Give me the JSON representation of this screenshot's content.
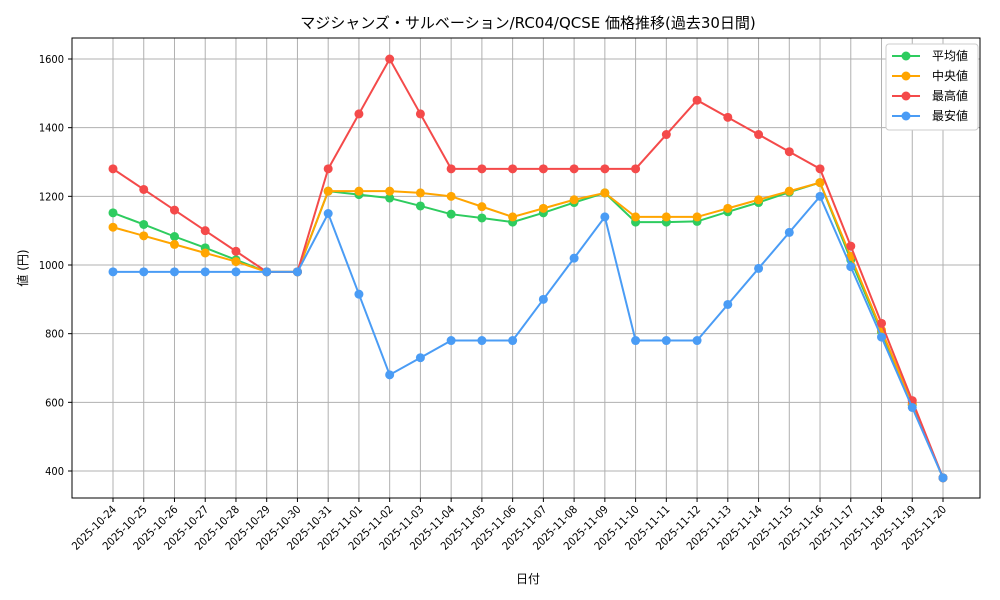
{
  "chart_data": {
    "type": "line",
    "title": "マジシャンズ・サルベーション/RC04/QCSE 価格推移(過去30日間)",
    "xlabel": "日付",
    "ylabel": "値 (円)",
    "ylim": [
      330,
      1660
    ],
    "yticks": [
      400,
      600,
      800,
      1000,
      1200,
      1400,
      1600
    ],
    "grid": true,
    "legend_position": "upper right",
    "categories": [
      "2025-10-24",
      "2025-10-25",
      "2025-10-26",
      "2025-10-27",
      "2025-10-28",
      "2025-10-29",
      "2025-10-30",
      "2025-10-31",
      "2025-11-01",
      "2025-11-02",
      "2025-11-03",
      "2025-11-04",
      "2025-11-05",
      "2025-11-06",
      "2025-11-07",
      "2025-11-08",
      "2025-11-09",
      "2025-11-10",
      "2025-11-11",
      "2025-11-12",
      "2025-11-13",
      "2025-11-14",
      "2025-11-15",
      "2025-11-16",
      "2025-11-17",
      "2025-11-18",
      "2025-11-19",
      "2025-11-20"
    ],
    "series": [
      {
        "name": "平均値",
        "color": "#2ecc5f",
        "values": [
          1152,
          1118,
          1083,
          1050,
          1015,
          980,
          980,
          1215,
          1205,
          1195,
          1172,
          1148,
          1137,
          1125,
          1152,
          1182,
          1210,
          1125,
          1125,
          1127,
          1155,
          1182,
          1212,
          1240,
          1015,
          805,
          592,
          380
        ]
      },
      {
        "name": "中央値",
        "color": "#ffa500",
        "values": [
          1110,
          1085,
          1060,
          1035,
          1010,
          980,
          980,
          1215,
          1215,
          1215,
          1210,
          1200,
          1170,
          1140,
          1165,
          1190,
          1210,
          1140,
          1140,
          1140,
          1165,
          1190,
          1215,
          1240,
          1025,
          810,
          595,
          380
        ]
      },
      {
        "name": "最高値",
        "color": "#f44a4a",
        "values": [
          1280,
          1220,
          1160,
          1100,
          1040,
          980,
          980,
          1280,
          1440,
          1600,
          1440,
          1280,
          1280,
          1280,
          1280,
          1280,
          1280,
          1280,
          1380,
          1480,
          1430,
          1380,
          1330,
          1280,
          1055,
          830,
          605,
          380
        ]
      },
      {
        "name": "最安値",
        "color": "#4a9cf5",
        "values": [
          980,
          980,
          980,
          980,
          980,
          980,
          980,
          1150,
          915,
          680,
          730,
          780,
          780,
          780,
          900,
          1020,
          1140,
          780,
          780,
          780,
          885,
          990,
          1095,
          1200,
          995,
          790,
          585,
          380
        ]
      }
    ]
  }
}
